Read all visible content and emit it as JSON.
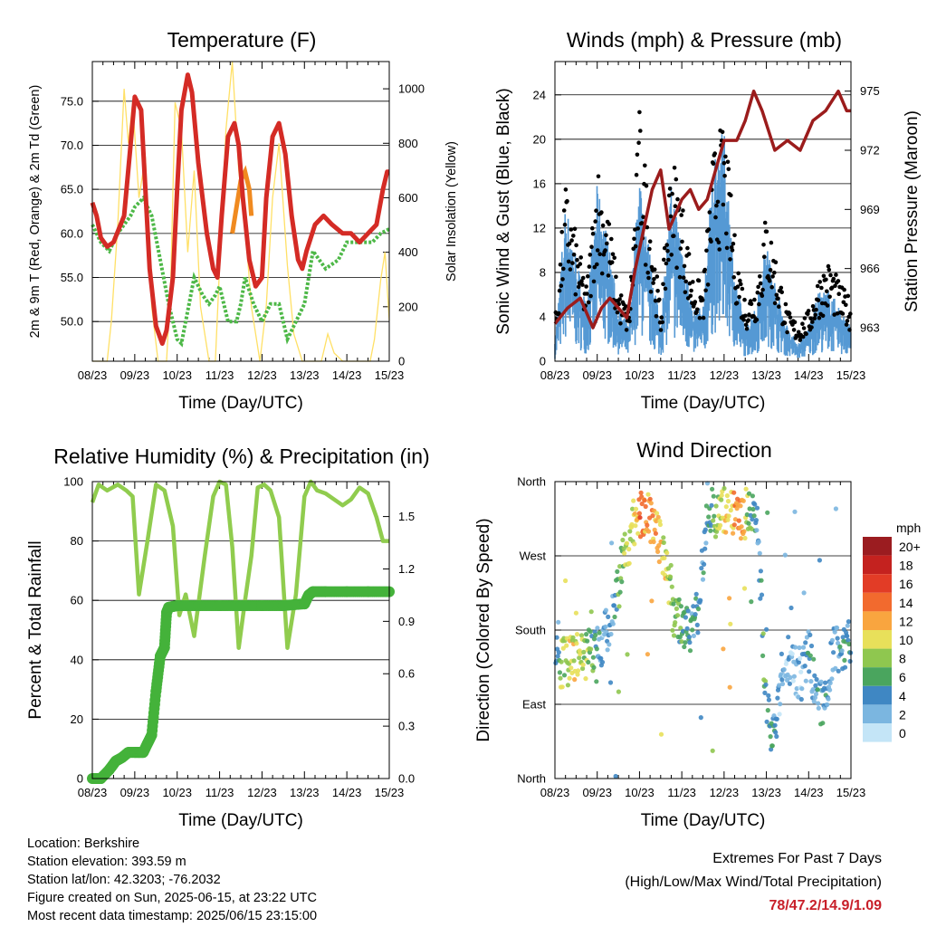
{
  "chart_data": [
    {
      "type": "line",
      "title": "Temperature (F)",
      "xlabel": "Time (Day/UTC)",
      "ylabel": "2m & 9m T (Red, Orange) & 2m Td (Green)",
      "y2label": "Solar Insolation (Yellow)",
      "x_ticks": [
        "08/23",
        "09/23",
        "10/23",
        "11/23",
        "12/23",
        "13/23",
        "14/23",
        "15/23"
      ],
      "ylim": [
        45.5,
        79.5
      ],
      "y_ticks": [
        "50.0",
        "55.0",
        "60.0",
        "65.0",
        "70.0",
        "75.0"
      ],
      "y2lim": [
        0,
        1100
      ],
      "y2_ticks": [
        "0",
        "200",
        "400",
        "600",
        "800",
        "1000"
      ],
      "grid": true,
      "series": [
        {
          "color": "#d42b25",
          "x": [
            0,
            0.1,
            0.2,
            0.35,
            0.5,
            0.75,
            0.9,
            1.0,
            1.15,
            1.25,
            1.35,
            1.5,
            1.65,
            1.75,
            1.9,
            2.0,
            2.1,
            2.25,
            2.35,
            2.5,
            2.7,
            2.85,
            2.95,
            3.05,
            3.2,
            3.35,
            3.45,
            3.55,
            3.7,
            3.85,
            4.0,
            4.1,
            4.25,
            4.4,
            4.55,
            4.7,
            4.85,
            4.95,
            5.05,
            5.25,
            5.45,
            5.65,
            5.9,
            6.1,
            6.3,
            6.5,
            6.7,
            6.85,
            6.95,
            7.0
          ],
          "values": [
            63.5,
            62,
            59.5,
            58.5,
            59,
            62,
            70,
            75.5,
            74,
            65,
            56,
            49.5,
            47.5,
            49,
            55,
            65,
            74,
            78,
            76,
            68,
            60,
            56,
            55,
            62,
            71,
            72.5,
            70,
            64,
            57,
            54,
            55,
            64,
            71,
            72.5,
            69,
            62,
            57,
            56,
            58,
            61,
            62,
            61,
            60,
            60,
            59,
            60,
            61,
            65,
            67,
            67
          ]
        },
        {
          "color": "#f08a20",
          "x": [
            3.3,
            3.4,
            3.5,
            3.6,
            3.7,
            3.75
          ],
          "values": [
            60,
            63,
            66,
            67,
            65,
            62
          ]
        },
        {
          "color": "#4db847",
          "x": [
            0,
            0.2,
            0.4,
            0.6,
            0.9,
            1.0,
            1.2,
            1.4,
            1.6,
            1.8,
            2.0,
            2.1,
            2.2,
            2.4,
            2.6,
            2.75,
            2.9,
            3.0,
            3.2,
            3.4,
            3.5,
            3.6,
            3.8,
            4.0,
            4.2,
            4.4,
            4.6,
            4.8,
            5.0,
            5.2,
            5.5,
            5.8,
            6.0,
            6.3,
            6.6,
            6.8,
            7.0
          ],
          "values": [
            61,
            59,
            58,
            60,
            62,
            63,
            64,
            62,
            57,
            52,
            48,
            47.5,
            50,
            55,
            53,
            52,
            53,
            54,
            50,
            50,
            52,
            55,
            52,
            50,
            52,
            52,
            48,
            50,
            52,
            58,
            56,
            57,
            59,
            59,
            59,
            60,
            60.5
          ]
        },
        {
          "color": "#ffe066",
          "x": [
            0,
            0.35,
            0.45,
            0.6,
            0.75,
            0.85,
            0.95,
            1.1,
            1.25,
            1.4,
            1.55,
            1.75,
            1.85,
            1.95,
            2.1,
            2.25,
            2.4,
            2.55,
            2.75,
            2.9,
            3.0,
            3.15,
            3.3,
            3.45,
            3.6,
            3.75,
            3.95,
            4.1,
            4.25,
            4.4,
            4.6,
            4.75,
            4.95,
            5.15,
            5.4,
            5.55,
            5.7,
            5.9,
            6.1,
            6.3,
            6.55,
            6.65,
            6.8,
            6.9,
            7.0
          ],
          "values": [
            0,
            0,
            150,
            500,
            1000,
            800,
            950,
            600,
            750,
            200,
            0,
            0,
            300,
            950,
            850,
            400,
            700,
            200,
            0,
            0,
            350,
            850,
            1100,
            700,
            500,
            200,
            0,
            200,
            600,
            800,
            350,
            100,
            0,
            0,
            0,
            100,
            30,
            0,
            0,
            0,
            0,
            80,
            300,
            400,
            150
          ]
        }
      ]
    },
    {
      "type": "scatter",
      "title": "Winds (mph) & Pressure (mb)",
      "xlabel": "Time (Day/UTC)",
      "ylabel": "Sonic Wind & Gust (Blue, Black)",
      "y2label": "Station Pressure (Maroon)",
      "x_ticks": [
        "08/23",
        "09/23",
        "10/23",
        "11/23",
        "12/23",
        "13/23",
        "14/23",
        "15/23"
      ],
      "ylim": [
        0,
        27
      ],
      "y_ticks": [
        "0",
        "4",
        "8",
        "12",
        "16",
        "20",
        "24"
      ],
      "y2lim": [
        961.3,
        976.5
      ],
      "y2_ticks": [
        "963",
        "966",
        "969",
        "972",
        "975"
      ],
      "grid": true,
      "series": [
        {
          "color": "#5599d4",
          "x": [
            0,
            0.25,
            0.5,
            0.75,
            1.0,
            1.25,
            1.5,
            1.75,
            2.0,
            2.25,
            2.5,
            2.75,
            3.0,
            3.25,
            3.5,
            3.75,
            4.0,
            4.25,
            4.5,
            4.75,
            5.0,
            5.25,
            5.5,
            5.75,
            6.0,
            6.25,
            6.5,
            6.75,
            7.0
          ],
          "values": [
            1,
            9,
            6,
            3,
            10,
            7,
            3,
            2,
            11,
            6,
            2,
            10,
            7,
            3,
            3,
            12,
            13,
            5,
            2,
            3,
            7,
            4,
            2,
            1,
            2,
            4,
            4,
            3,
            2
          ]
        },
        {
          "color": "#000000",
          "x": [
            0,
            0.25,
            0.5,
            0.75,
            1.0,
            1.25,
            1.5,
            1.75,
            2.0,
            2.25,
            2.5,
            2.75,
            3.0,
            3.25,
            3.5,
            3.75,
            4.0,
            4.25,
            4.5,
            4.75,
            5.0,
            5.25,
            5.5,
            5.75,
            6.0,
            6.25,
            6.5,
            6.75,
            7.0
          ],
          "values": [
            3,
            14,
            10,
            6,
            16,
            12,
            6,
            4,
            20,
            12,
            4,
            17,
            13,
            7,
            6,
            17,
            19,
            10,
            5,
            6,
            12,
            8,
            4,
            3,
            4,
            7,
            8,
            6,
            5
          ]
        },
        {
          "color": "#9b1c1c",
          "x": [
            0,
            0.3,
            0.6,
            0.9,
            1.1,
            1.3,
            1.5,
            1.7,
            1.9,
            2.1,
            2.3,
            2.5,
            2.7,
            3.0,
            3.2,
            3.4,
            3.6,
            3.8,
            4.0,
            4.3,
            4.5,
            4.7,
            4.9,
            5.2,
            5.5,
            5.8,
            6.1,
            6.4,
            6.7,
            6.9,
            7.0
          ],
          "values": [
            963.2,
            964,
            964.5,
            963,
            964,
            964.5,
            964,
            963.5,
            966,
            968,
            970,
            971,
            968,
            969.5,
            970,
            969,
            969.5,
            971,
            972.5,
            972.5,
            973.5,
            975,
            974,
            972,
            972.5,
            972,
            973.5,
            974,
            975,
            974,
            974
          ]
        }
      ]
    },
    {
      "type": "line",
      "title": "Relative Humidity (%) & Precipitation (in)",
      "xlabel": "Time (Day/UTC)",
      "ylabel": "Percent & Total Rainfall",
      "x_ticks": [
        "08/23",
        "09/23",
        "10/23",
        "11/23",
        "12/23",
        "13/23",
        "14/23",
        "15/23"
      ],
      "ylim": [
        0,
        100
      ],
      "y_ticks": [
        "0",
        "20",
        "40",
        "60",
        "80",
        "100"
      ],
      "y2lim": [
        0,
        1.7
      ],
      "y2_ticks": [
        "0.0",
        "0.3",
        "0.6",
        "0.9",
        "1.2",
        "1.5"
      ],
      "grid": true,
      "series": [
        {
          "color": "#90cc4e",
          "x": [
            0,
            0.15,
            0.35,
            0.6,
            0.8,
            0.95,
            1.1,
            1.3,
            1.5,
            1.7,
            1.9,
            2.05,
            2.2,
            2.4,
            2.65,
            2.85,
            3.0,
            3.15,
            3.3,
            3.45,
            3.6,
            3.75,
            3.9,
            4.05,
            4.2,
            4.4,
            4.6,
            4.8,
            5.0,
            5.15,
            5.3,
            5.5,
            5.7,
            5.9,
            6.1,
            6.3,
            6.5,
            6.7,
            6.85,
            7.0
          ],
          "values": [
            93,
            99,
            97,
            99,
            97,
            95,
            62,
            80,
            99,
            97,
            85,
            55,
            62,
            48,
            75,
            95,
            100,
            99,
            78,
            44,
            60,
            75,
            98,
            99,
            97,
            88,
            44,
            62,
            95,
            100,
            97,
            96,
            94,
            92,
            94,
            98,
            96,
            88,
            80,
            80
          ]
        },
        {
          "color": "#44b23a",
          "x": [
            0,
            0.2,
            0.4,
            0.55,
            0.7,
            0.85,
            1.0,
            1.1,
            1.2,
            1.3,
            1.4,
            1.5,
            1.6,
            1.7,
            1.75,
            1.8,
            2.0,
            2.5,
            3.0,
            3.5,
            4.0,
            4.5,
            5.0,
            5.1,
            5.2,
            5.5,
            6.0,
            6.5,
            7.0
          ],
          "values": [
            0,
            0,
            0.05,
            0.1,
            0.12,
            0.15,
            0.15,
            0.15,
            0.15,
            0.2,
            0.25,
            0.5,
            0.7,
            0.75,
            0.95,
            0.98,
            0.99,
            0.99,
            0.99,
            0.99,
            0.99,
            0.99,
            1.0,
            1.05,
            1.07,
            1.07,
            1.07,
            1.07,
            1.07
          ]
        }
      ]
    },
    {
      "type": "scatter",
      "title": "Wind Direction",
      "xlabel": "Time (Day/UTC)",
      "ylabel": "Direction (Colored By Speed)",
      "x_ticks": [
        "08/23",
        "09/23",
        "10/23",
        "11/23",
        "12/23",
        "13/23",
        "14/23",
        "15/23"
      ],
      "ylim": [
        0,
        360
      ],
      "y_ticks": [
        "North",
        "East",
        "South",
        "West",
        "North"
      ],
      "legend": {
        "title": "mph",
        "labels": [
          "20+",
          "18",
          "16",
          "14",
          "12",
          "10",
          "8",
          "6",
          "4",
          "2",
          "0"
        ],
        "colors": [
          "#9b1c20",
          "#c4221f",
          "#e23c26",
          "#f26a2e",
          "#f9a53f",
          "#e8e05a",
          "#8fc74f",
          "#4aa55e",
          "#3f87c3",
          "#7bb6e0",
          "#c4e5f7"
        ]
      },
      "series": [
        {
          "x": [
            0.1,
            0.3,
            0.5,
            0.7,
            0.9,
            1.0,
            1.2,
            1.4,
            1.6,
            1.9,
            2.0,
            2.2,
            2.4,
            2.6,
            2.8,
            3.0,
            3.2,
            3.4,
            3.6,
            3.8,
            4.0,
            4.2,
            4.4,
            4.6,
            4.8,
            5.0,
            5.2,
            5.4,
            5.6,
            5.8,
            6.0,
            6.2,
            6.4,
            6.6,
            6.8,
            7.0
          ],
          "values": [
            140,
            140,
            145,
            150,
            155,
            145,
            175,
            200,
            260,
            310,
            320,
            320,
            300,
            270,
            200,
            190,
            180,
            200,
            330,
            315,
            330,
            320,
            310,
            330,
            300,
            80,
            50,
            150,
            140,
            120,
            160,
            90,
            100,
            160,
            155,
            170
          ],
          "speeds": [
            8,
            9,
            10,
            8,
            6,
            4,
            2,
            4,
            8,
            10,
            14,
            12,
            12,
            10,
            8,
            6,
            4,
            4,
            4,
            8,
            10,
            12,
            14,
            6,
            4,
            6,
            4,
            2,
            2,
            2,
            4,
            4,
            4,
            2,
            4,
            4
          ]
        }
      ]
    }
  ],
  "info": {
    "location": "Location: Berkshire",
    "elevation": "Station elevation: 393.59 m",
    "latlon": "Station lat/lon: 42.3203; -76.2032",
    "created": "Figure created on Sun, 2025-06-15, at 23:22 UTC",
    "recent": "Most recent data timestamp: 2025/06/15 23:15:00"
  },
  "extremes": {
    "line1": "Extremes For Past 7 Days",
    "line2": "(High/Low/Max Wind/Total Precipitation)",
    "values": "78/47.2/14.9/1.09"
  }
}
